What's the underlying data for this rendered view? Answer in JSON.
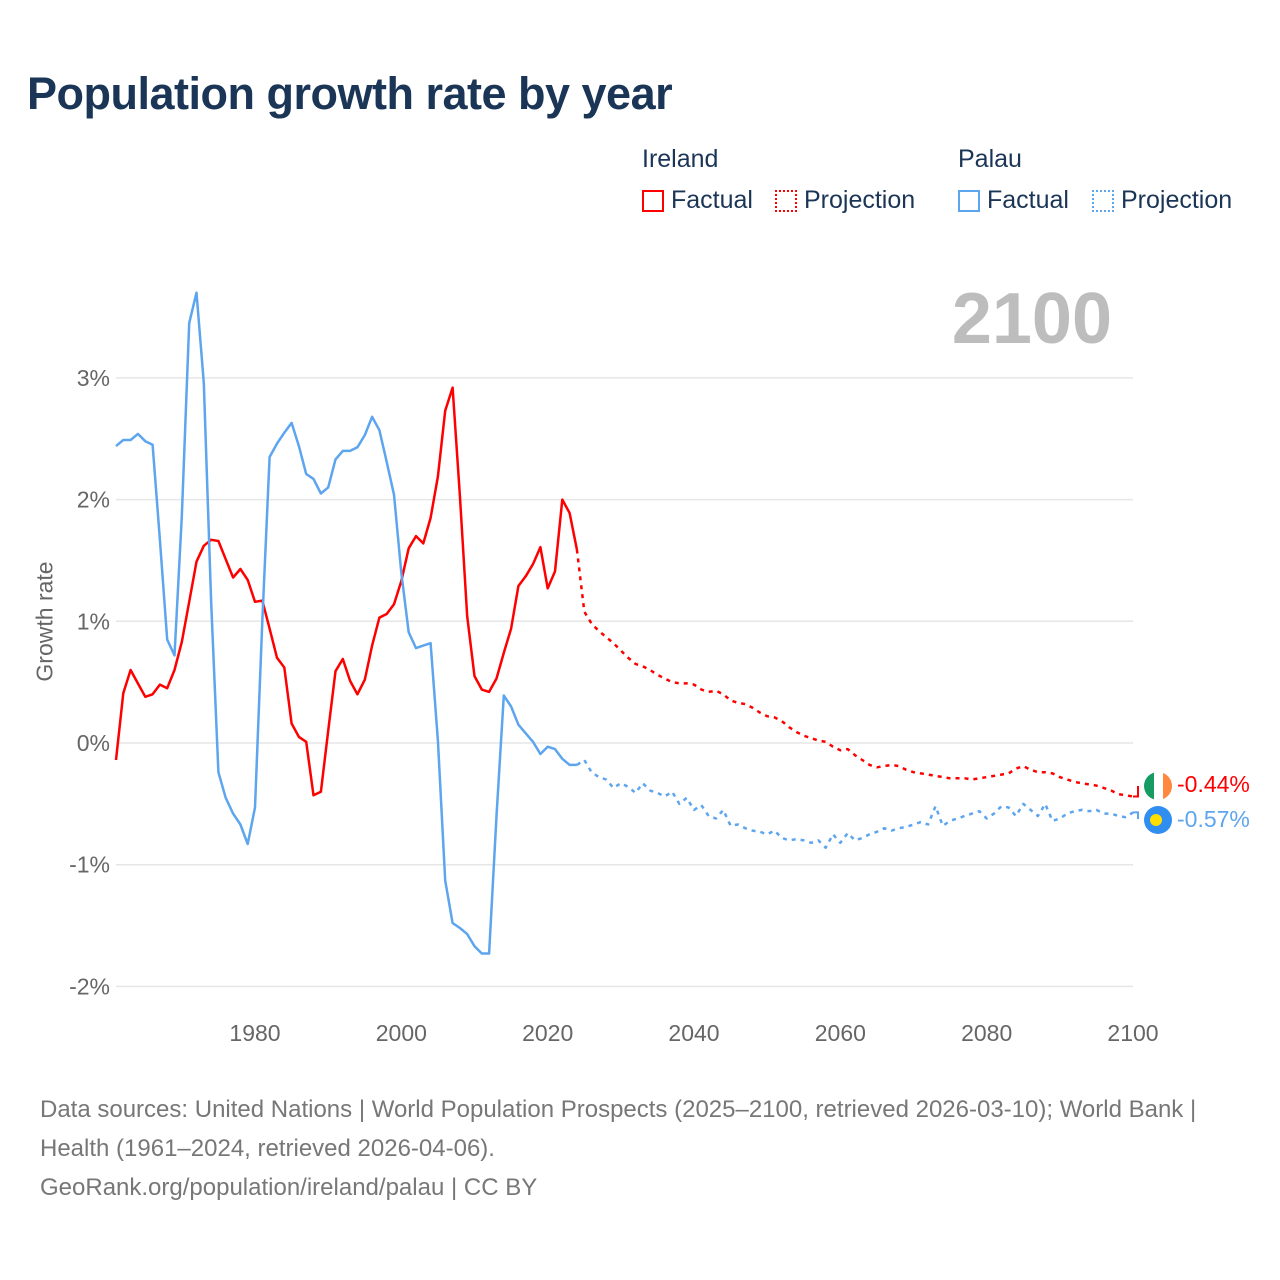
{
  "title": "Population growth rate by year",
  "legend": {
    "ireland": {
      "name": "Ireland",
      "factual": "Factual",
      "projection": "Projection"
    },
    "palau": {
      "name": "Palau",
      "factual": "Factual",
      "projection": "Projection"
    }
  },
  "current_year_display": "2100",
  "end_labels": {
    "ireland": "-0.44%",
    "palau": "-0.57%"
  },
  "flags": {
    "ireland": "ireland-flag",
    "palau": "palau-flag"
  },
  "colors": {
    "ireland": "#ff0000",
    "palau": "#5da5ee",
    "title": "#1b3556",
    "grid": "#e6e6e6"
  },
  "footer": {
    "sources": "Data sources: United Nations | World Population Prospects (2025–2100, retrieved 2026-03-10); World Bank | Health (1961–2024, retrieved 2026-04-06).",
    "credit": "GeoRank.org/population/ireland/palau | CC BY"
  },
  "chart_data": {
    "type": "line",
    "title": "Population growth rate by year",
    "xlabel": "",
    "ylabel": "Growth rate",
    "xlim": [
      1961,
      2100
    ],
    "ylim": [
      -2.2,
      3.9
    ],
    "x_ticks": [
      1980,
      2000,
      2020,
      2040,
      2060,
      2080,
      2100
    ],
    "x_tick_labels": [
      "1980",
      "2000",
      "2020",
      "2040",
      "2060",
      "2080",
      "2100"
    ],
    "y_ticks": [
      3,
      2,
      1,
      0,
      -1,
      -2
    ],
    "y_tick_labels": [
      "3%",
      "2%",
      "1%",
      "0%",
      "-1%",
      "-2%"
    ],
    "grid": true,
    "legend_position": "top-right",
    "series": [
      {
        "name": "Ireland Factual",
        "country": "ireland",
        "style": "solid",
        "start_year": 1961,
        "values": [
          -0.14,
          0.41,
          0.6,
          0.49,
          0.38,
          0.4,
          0.48,
          0.45,
          0.6,
          0.83,
          1.16,
          1.49,
          1.62,
          1.67,
          1.66,
          1.51,
          1.36,
          1.43,
          1.34,
          1.16,
          1.17,
          0.94,
          0.7,
          0.62,
          0.16,
          0.05,
          0.01,
          -0.43,
          -0.4,
          0.1,
          0.59,
          0.69,
          0.51,
          0.4,
          0.52,
          0.8,
          1.03,
          1.06,
          1.14,
          1.33,
          1.6,
          1.7,
          1.64,
          1.85,
          2.19,
          2.73,
          2.92,
          2.03,
          1.04,
          0.55,
          0.44,
          0.42,
          0.53,
          0.74,
          0.94,
          1.29,
          1.37,
          1.47,
          1.61,
          1.27,
          1.41,
          2.0,
          1.89,
          1.59
        ]
      },
      {
        "name": "Ireland Projection",
        "country": "ireland",
        "style": "dotted",
        "start_year": 2024,
        "values": [
          1.59,
          1.08,
          0.98,
          0.92,
          0.87,
          0.82,
          0.76,
          0.7,
          0.65,
          0.63,
          0.6,
          0.56,
          0.53,
          0.5,
          0.49,
          0.49,
          0.48,
          0.44,
          0.42,
          0.43,
          0.4,
          0.35,
          0.33,
          0.32,
          0.29,
          0.25,
          0.22,
          0.21,
          0.18,
          0.13,
          0.09,
          0.06,
          0.04,
          0.02,
          0.01,
          -0.03,
          -0.06,
          -0.05,
          -0.1,
          -0.14,
          -0.18,
          -0.2,
          -0.19,
          -0.18,
          -0.19,
          -0.22,
          -0.24,
          -0.25,
          -0.26,
          -0.27,
          -0.28,
          -0.29,
          -0.29,
          -0.29,
          -0.3,
          -0.29,
          -0.28,
          -0.27,
          -0.26,
          -0.25,
          -0.21,
          -0.19,
          -0.22,
          -0.24,
          -0.24,
          -0.25,
          -0.28,
          -0.3,
          -0.32,
          -0.33,
          -0.34,
          -0.35,
          -0.37,
          -0.39,
          -0.42,
          -0.43,
          -0.44
        ]
      },
      {
        "name": "Palau Factual",
        "country": "palau",
        "style": "solid",
        "start_year": 1961,
        "values": [
          2.44,
          2.49,
          2.49,
          2.54,
          2.48,
          2.45,
          1.67,
          0.85,
          0.72,
          1.86,
          3.45,
          3.7,
          2.96,
          1.17,
          -0.24,
          -0.45,
          -0.58,
          -0.67,
          -0.83,
          -0.53,
          1.0,
          2.35,
          2.46,
          2.55,
          2.63,
          2.44,
          2.21,
          2.17,
          2.05,
          2.1,
          2.33,
          2.4,
          2.4,
          2.43,
          2.53,
          2.68,
          2.57,
          2.31,
          2.04,
          1.4,
          0.91,
          0.78,
          0.8,
          0.82,
          0.02,
          -1.13,
          -1.48,
          -1.52,
          -1.57,
          -1.67,
          -1.73,
          -1.73,
          -0.6,
          0.39,
          0.3,
          0.15,
          0.08,
          0.01,
          -0.09,
          -0.03,
          -0.05,
          -0.13,
          -0.18,
          -0.18
        ]
      },
      {
        "name": "Palau Projection",
        "country": "palau",
        "style": "dotted",
        "start_year": 2024,
        "values": [
          -0.18,
          -0.14,
          -0.24,
          -0.28,
          -0.3,
          -0.37,
          -0.33,
          -0.36,
          -0.41,
          -0.33,
          -0.39,
          -0.41,
          -0.44,
          -0.4,
          -0.5,
          -0.45,
          -0.55,
          -0.51,
          -0.6,
          -0.62,
          -0.55,
          -0.68,
          -0.67,
          -0.7,
          -0.72,
          -0.73,
          -0.75,
          -0.72,
          -0.78,
          -0.8,
          -0.79,
          -0.8,
          -0.82,
          -0.8,
          -0.86,
          -0.75,
          -0.82,
          -0.74,
          -0.8,
          -0.78,
          -0.75,
          -0.73,
          -0.7,
          -0.72,
          -0.7,
          -0.69,
          -0.67,
          -0.65,
          -0.67,
          -0.52,
          -0.68,
          -0.64,
          -0.62,
          -0.6,
          -0.58,
          -0.56,
          -0.62,
          -0.58,
          -0.52,
          -0.53,
          -0.6,
          -0.5,
          -0.55,
          -0.6,
          -0.5,
          -0.64,
          -0.62,
          -0.58,
          -0.56,
          -0.55,
          -0.56,
          -0.55,
          -0.58,
          -0.58,
          -0.6,
          -0.61,
          -0.57
        ]
      }
    ]
  }
}
